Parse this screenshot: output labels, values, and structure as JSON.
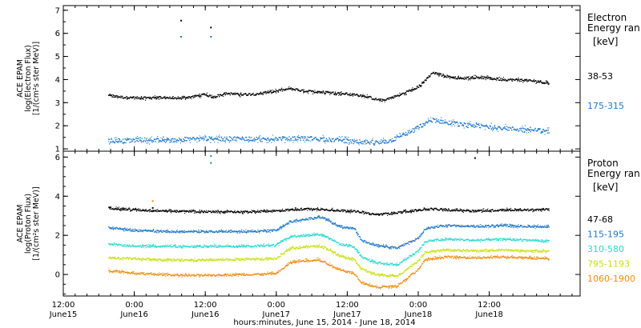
{
  "chart_data": [
    {
      "type": "scatter",
      "panel": "electron",
      "ylabel_lines": [
        "ACE EPAM",
        "log(Electron Flux)",
        "[1/(cm²s ster MeV)]"
      ],
      "ylim": [
        0.9,
        7.2
      ],
      "yticks": [
        "1",
        "2",
        "3",
        "4",
        "5",
        "6",
        "7"
      ],
      "legend_title": [
        "Electron",
        "Energy ran"
      ],
      "legend_unit": "[keV]",
      "series": [
        {
          "name": "38-53",
          "color": "#000000",
          "x": [
            0.32,
            0.45,
            0.55,
            0.65,
            0.72,
            0.8,
            0.9,
            1.0,
            1.05,
            1.15,
            1.25,
            1.35,
            1.45,
            1.6,
            1.7,
            1.85,
            1.95,
            2.05,
            2.12,
            2.2,
            2.25,
            2.3,
            2.38,
            2.45,
            2.52,
            2.6,
            2.7,
            2.8,
            2.92,
            3.0,
            3.1,
            3.2,
            3.3,
            3.42
          ],
          "y": [
            3.3,
            3.22,
            3.2,
            3.22,
            3.22,
            3.18,
            3.25,
            3.35,
            3.25,
            3.4,
            3.35,
            3.38,
            3.45,
            3.6,
            3.5,
            3.45,
            3.4,
            3.35,
            3.3,
            3.15,
            3.1,
            3.2,
            3.35,
            3.55,
            3.75,
            4.3,
            4.15,
            4.05,
            4.1,
            4.05,
            4.0,
            3.98,
            3.95,
            3.85
          ]
        },
        {
          "name": "175-315",
          "color": "#1e78c8",
          "x": [
            0.32,
            0.45,
            0.55,
            0.65,
            0.72,
            0.8,
            0.9,
            1.0,
            1.1,
            1.2,
            1.3,
            1.4,
            1.5,
            1.6,
            1.75,
            1.85,
            1.95,
            2.05,
            2.15,
            2.22,
            2.3,
            2.38,
            2.45,
            2.52,
            2.6,
            2.7,
            2.8,
            2.92,
            3.0,
            3.1,
            3.2,
            3.3,
            3.42
          ],
          "y": [
            1.35,
            1.35,
            1.4,
            1.38,
            1.35,
            1.4,
            1.42,
            1.45,
            1.42,
            1.45,
            1.45,
            1.4,
            1.45,
            1.45,
            1.45,
            1.4,
            1.38,
            1.3,
            1.3,
            1.25,
            1.35,
            1.55,
            1.75,
            2.0,
            2.25,
            2.15,
            2.05,
            2.0,
            1.95,
            1.9,
            1.85,
            1.82,
            1.75
          ]
        }
      ],
      "outliers": [
        {
          "x": 0.83,
          "y": 6.55,
          "color": "#000000"
        },
        {
          "x": 0.83,
          "y": 5.85,
          "color": "#1e78c8"
        },
        {
          "x": 1.04,
          "y": 6.25,
          "color": "#000000"
        },
        {
          "x": 1.04,
          "y": 5.85,
          "color": "#1e78c8"
        }
      ]
    },
    {
      "type": "scatter",
      "panel": "proton",
      "ylabel_lines": [
        "ACE EPAM",
        "log(Proton Flux)",
        "[1/(cm²s ster MeV)]"
      ],
      "ylim": [
        -1.1,
        6.3
      ],
      "yticks": [
        "0",
        "2",
        "4",
        "6"
      ],
      "legend_title": [
        "Proton",
        "Energy ran"
      ],
      "legend_unit": "[keV]",
      "series": [
        {
          "name": "47-68",
          "color": "#000000",
          "x": [
            0.32,
            0.5,
            0.7,
            0.9,
            1.1,
            1.3,
            1.5,
            1.6,
            1.7,
            1.9,
            2.0,
            2.1,
            2.2,
            2.4,
            2.5,
            2.6,
            2.7,
            2.9,
            3.1,
            3.3,
            3.42
          ],
          "y": [
            3.4,
            3.3,
            3.25,
            3.22,
            3.2,
            3.2,
            3.25,
            3.3,
            3.35,
            3.3,
            3.25,
            3.2,
            3.05,
            3.2,
            3.3,
            3.35,
            3.3,
            3.25,
            3.3,
            3.3,
            3.32
          ]
        },
        {
          "name": "115-195",
          "color": "#1e78c8",
          "x": [
            0.32,
            0.5,
            0.7,
            0.9,
            1.1,
            1.3,
            1.5,
            1.6,
            1.7,
            1.8,
            1.85,
            1.9,
            1.95,
            2.05,
            2.1,
            2.2,
            2.35,
            2.5,
            2.55,
            2.7,
            2.9,
            3.1,
            3.3,
            3.42
          ],
          "y": [
            2.4,
            2.25,
            2.2,
            2.18,
            2.2,
            2.2,
            2.25,
            2.7,
            2.8,
            2.95,
            2.85,
            2.6,
            2.45,
            2.35,
            1.75,
            1.5,
            1.35,
            1.85,
            2.35,
            2.5,
            2.45,
            2.5,
            2.45,
            2.45
          ]
        },
        {
          "name": "310-580",
          "color": "#2ad8d0",
          "x": [
            0.32,
            0.5,
            0.7,
            0.9,
            1.1,
            1.3,
            1.5,
            1.6,
            1.7,
            1.8,
            1.85,
            1.9,
            1.95,
            2.05,
            2.1,
            2.2,
            2.35,
            2.5,
            2.55,
            2.7,
            2.9,
            3.1,
            3.3,
            3.42
          ],
          "y": [
            1.55,
            1.45,
            1.45,
            1.42,
            1.45,
            1.45,
            1.5,
            1.95,
            2.0,
            2.05,
            1.95,
            1.75,
            1.55,
            1.4,
            0.9,
            0.6,
            0.5,
            1.2,
            1.7,
            1.8,
            1.75,
            1.8,
            1.75,
            1.7
          ]
        },
        {
          "name": "795-1193",
          "color": "#c8e010",
          "x": [
            0.32,
            0.5,
            0.7,
            0.9,
            1.1,
            1.3,
            1.5,
            1.6,
            1.7,
            1.8,
            1.85,
            1.9,
            1.95,
            2.05,
            2.1,
            2.2,
            2.35,
            2.5,
            2.55,
            2.7,
            2.9,
            3.1,
            3.3,
            3.42
          ],
          "y": [
            0.85,
            0.8,
            0.75,
            0.72,
            0.75,
            0.78,
            0.8,
            1.35,
            1.4,
            1.45,
            1.35,
            1.15,
            0.95,
            0.75,
            0.3,
            0.0,
            -0.1,
            0.7,
            1.15,
            1.25,
            1.2,
            1.25,
            1.2,
            1.2
          ]
        },
        {
          "name": "1060-1900",
          "color": "#f08c10",
          "x": [
            0.32,
            0.5,
            0.7,
            0.9,
            1.1,
            1.3,
            1.5,
            1.6,
            1.7,
            1.8,
            1.85,
            1.9,
            1.95,
            2.05,
            2.1,
            2.2,
            2.35,
            2.5,
            2.55,
            2.7,
            2.9,
            3.1,
            3.3,
            3.42
          ],
          "y": [
            0.2,
            0.05,
            0.0,
            -0.05,
            -0.02,
            0.0,
            0.05,
            0.6,
            0.7,
            0.75,
            0.6,
            0.4,
            0.25,
            0.05,
            -0.4,
            -0.65,
            -0.6,
            0.25,
            0.75,
            0.9,
            0.85,
            0.9,
            0.85,
            0.8
          ]
        }
      ],
      "outliers": [
        {
          "x": 1.04,
          "y": 6.05,
          "color": "#1e78c8"
        },
        {
          "x": 1.04,
          "y": 5.7,
          "color": "#1e78c8"
        },
        {
          "x": 2.9,
          "y": 5.95,
          "color": "#000000"
        },
        {
          "x": 0.63,
          "y": 3.75,
          "color": "#f08c10"
        },
        {
          "x": 0.63,
          "y": 3.4,
          "color": "#000000"
        }
      ]
    }
  ],
  "x_axis": {
    "xlim": [
      0.0,
      3.64
    ],
    "ticks": [
      {
        "x": 0.0,
        "time": "12:00",
        "day": "June15"
      },
      {
        "x": 0.5,
        "time": "0:00",
        "day": "June16"
      },
      {
        "x": 1.0,
        "time": "12:00",
        "day": "June16"
      },
      {
        "x": 1.5,
        "time": "0:00",
        "day": "June17"
      },
      {
        "x": 2.0,
        "time": "12:00",
        "day": "June17"
      },
      {
        "x": 2.5,
        "time": "0:00",
        "day": "June18"
      },
      {
        "x": 3.0,
        "time": "12:00",
        "day": "June18"
      }
    ],
    "xlabel": "hours:minutes, June 15, 2014 - June 18, 2014"
  }
}
